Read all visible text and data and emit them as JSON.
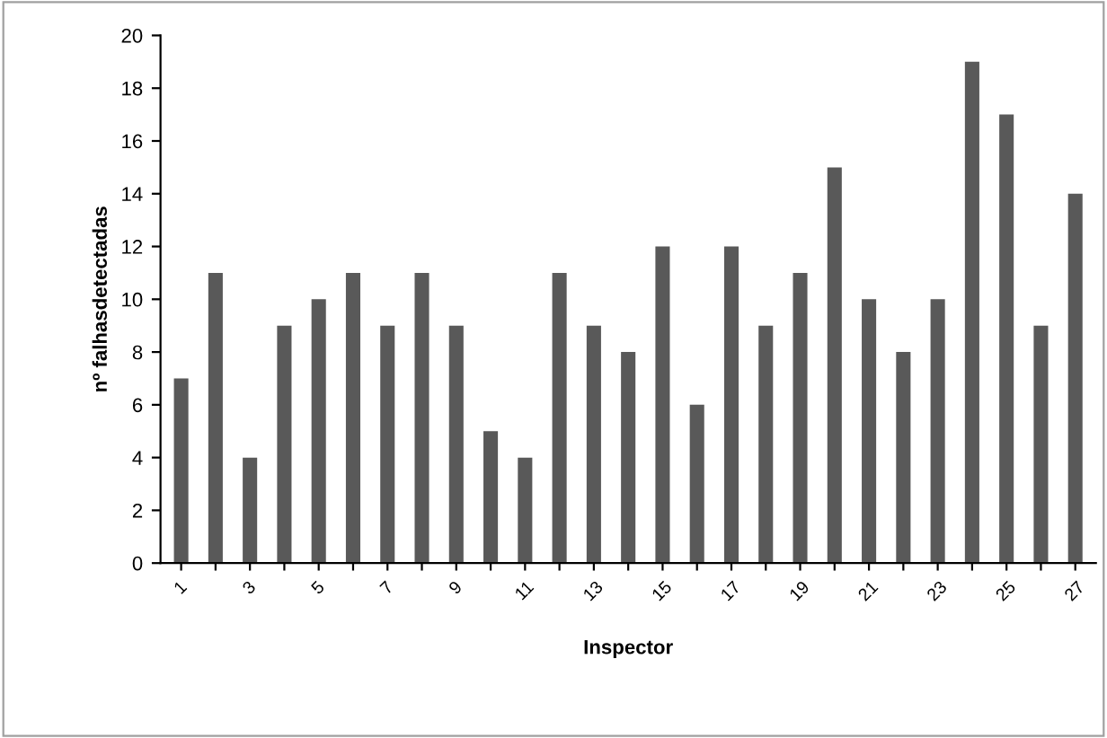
{
  "chart_data": {
    "type": "bar",
    "xlabel": "Inspector",
    "ylabel": "nº falhasdetectadas",
    "categories": [
      "1",
      null,
      "3",
      null,
      "5",
      null,
      "7",
      null,
      "9",
      null,
      "11",
      null,
      "13",
      null,
      "15",
      null,
      "17",
      null,
      "19",
      null,
      "21",
      null,
      "23",
      null,
      "25",
      null,
      "27"
    ],
    "values": [
      7,
      11,
      4,
      9,
      10,
      11,
      9,
      11,
      9,
      5,
      4,
      11,
      9,
      8,
      12,
      6,
      12,
      9,
      11,
      15,
      10,
      8,
      10,
      19,
      17,
      9,
      14
    ],
    "color": "#595959",
    "ylim": [
      0,
      20
    ],
    "yticks": [
      0,
      2,
      4,
      6,
      8,
      10,
      12,
      14,
      16,
      18,
      20
    ],
    "grid": false,
    "legend": false
  }
}
